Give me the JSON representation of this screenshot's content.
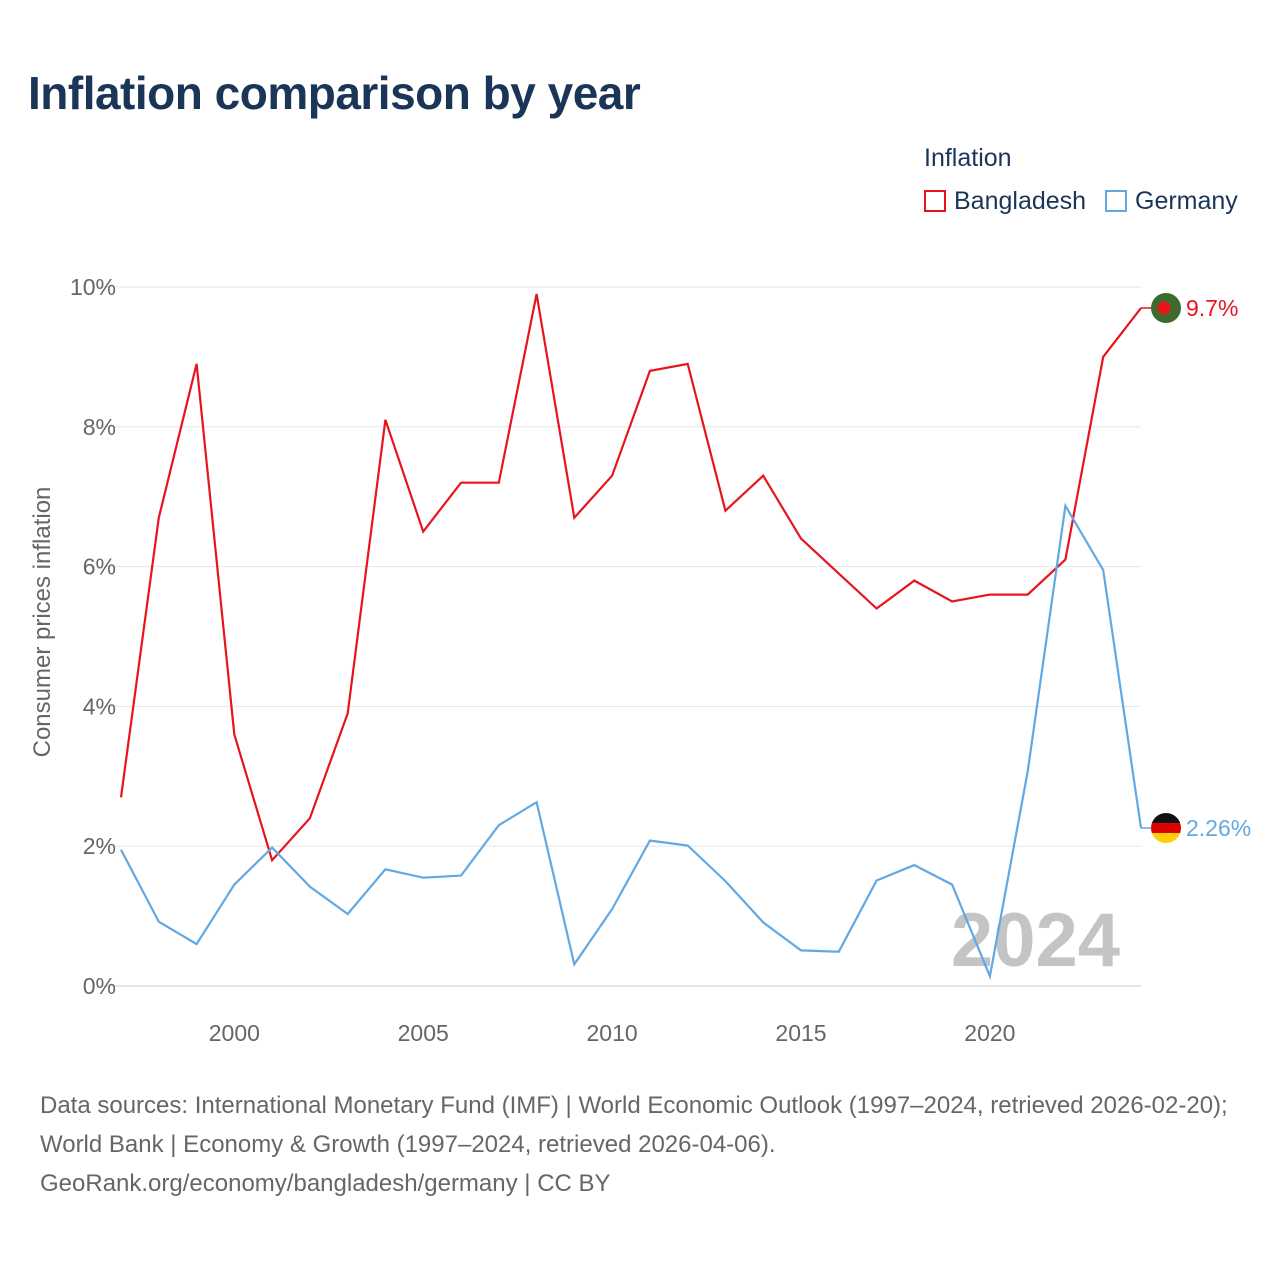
{
  "title": "Inflation comparison by year",
  "legend": {
    "title": "Inflation",
    "items": [
      {
        "name": "Bangladesh",
        "color": "#e8141c"
      },
      {
        "name": "Germany",
        "color": "#62a8e2"
      }
    ]
  },
  "watermark_year": "2024",
  "source": {
    "line1": "Data sources: International Monetary Fund (IMF) | World Economic Outlook (1997–2024, retrieved 2026-02-20); World Bank | Economy & Growth (1997–2024, retrieved 2026-04-06).",
    "line2": "GeoRank.org/economy/bangladesh/germany | CC BY"
  },
  "chart_data": {
    "type": "line",
    "title": "Inflation comparison by year",
    "xlabel": "",
    "ylabel": "Consumer prices inflation",
    "xlim": [
      1997,
      2024
    ],
    "ylim": [
      0,
      10
    ],
    "yticks": [
      0,
      2,
      4,
      6,
      8,
      10
    ],
    "ytick_labels": [
      "0%",
      "2%",
      "4%",
      "6%",
      "8%",
      "10%"
    ],
    "xticks": [
      2000,
      2005,
      2010,
      2015,
      2020
    ],
    "xtick_labels": [
      "2000",
      "2005",
      "2010",
      "2015",
      "2020"
    ],
    "grid": true,
    "legend_position": "top-right",
    "x": [
      1997,
      1998,
      1999,
      2000,
      2001,
      2002,
      2003,
      2004,
      2005,
      2006,
      2007,
      2008,
      2009,
      2010,
      2011,
      2012,
      2013,
      2014,
      2015,
      2016,
      2017,
      2018,
      2019,
      2020,
      2021,
      2022,
      2023,
      2024
    ],
    "series": [
      {
        "name": "Bangladesh",
        "color": "#e8141c",
        "end_label": "9.7%",
        "values": [
          2.7,
          6.7,
          8.9,
          3.6,
          1.8,
          2.4,
          3.9,
          8.1,
          6.5,
          7.2,
          7.2,
          9.9,
          6.7,
          7.3,
          8.8,
          8.9,
          6.8,
          7.3,
          6.4,
          5.9,
          5.4,
          5.8,
          5.5,
          5.6,
          5.6,
          6.1,
          9.0,
          9.7
        ]
      },
      {
        "name": "Germany",
        "color": "#62a8e2",
        "end_label": "2.26%",
        "values": [
          1.95,
          0.92,
          0.6,
          1.45,
          1.98,
          1.42,
          1.03,
          1.67,
          1.55,
          1.58,
          2.3,
          2.63,
          0.31,
          1.1,
          2.08,
          2.01,
          1.5,
          0.91,
          0.51,
          0.49,
          1.51,
          1.73,
          1.45,
          0.14,
          3.07,
          6.87,
          5.95,
          2.26
        ]
      }
    ]
  }
}
